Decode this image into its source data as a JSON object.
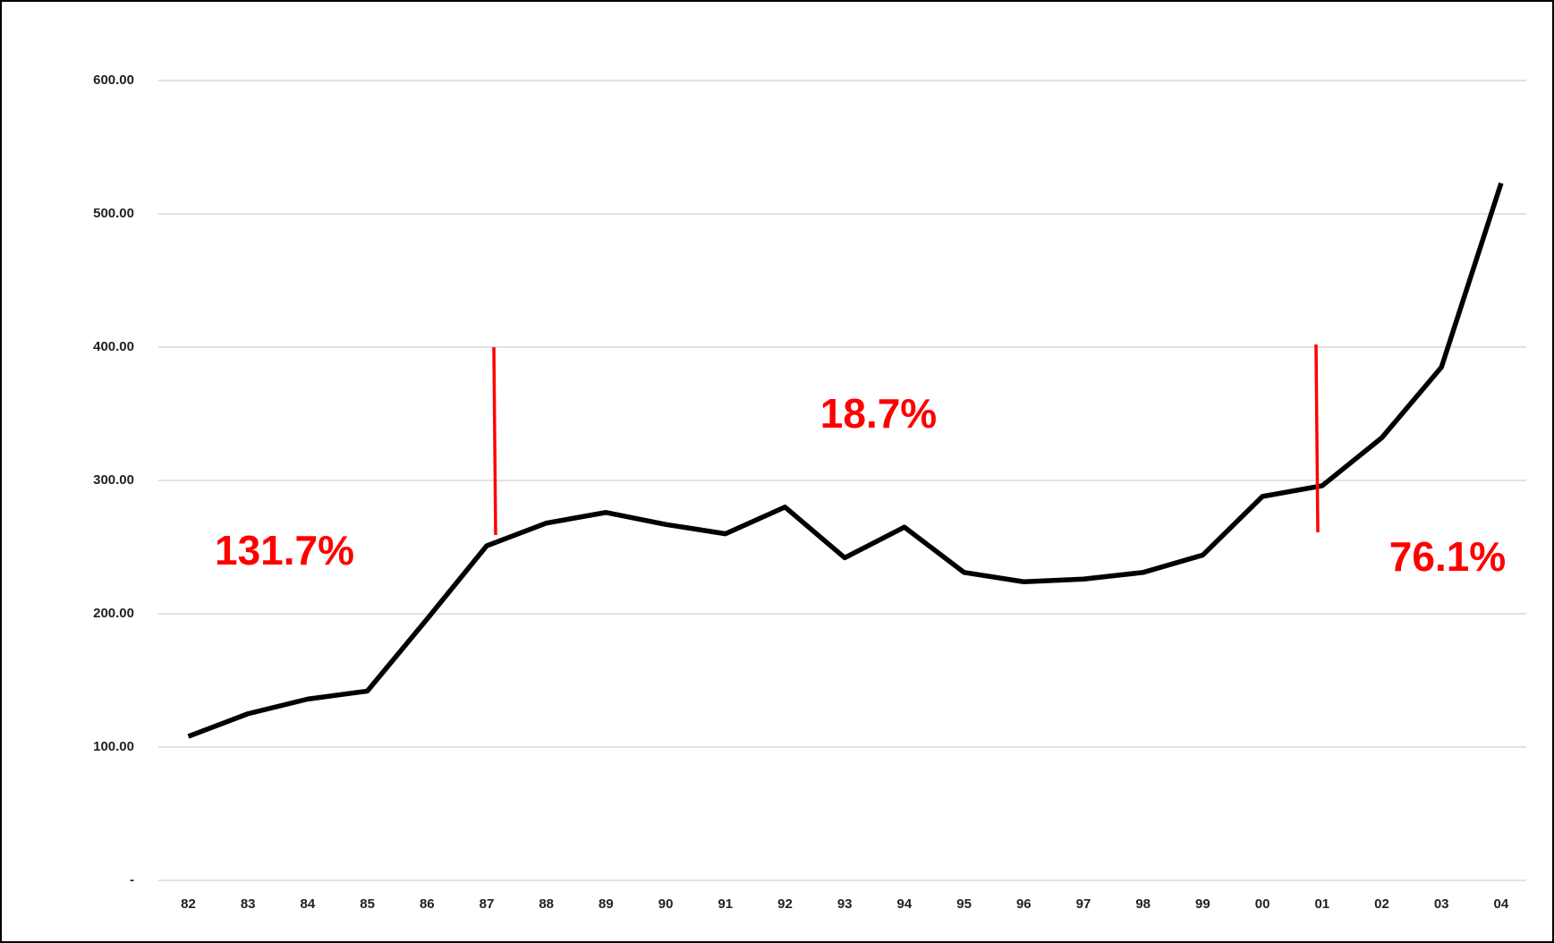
{
  "chart_data": {
    "type": "line",
    "categories": [
      "82",
      "83",
      "84",
      "85",
      "86",
      "87",
      "88",
      "89",
      "90",
      "91",
      "92",
      "93",
      "94",
      "95",
      "96",
      "97",
      "98",
      "99",
      "00",
      "01",
      "02",
      "03",
      "04"
    ],
    "series": [
      {
        "color": "#000000",
        "values": [
          108,
          125,
          136,
          142,
          196,
          251,
          268,
          276,
          267,
          260,
          280,
          242,
          265,
          231,
          224,
          226,
          231,
          244,
          288,
          296,
          332,
          385,
          523
        ]
      }
    ],
    "ylim": [
      0,
      600
    ],
    "yticks": [
      {
        "value": 0,
        "label": "-"
      },
      {
        "value": 100,
        "label": "100.00"
      },
      {
        "value": 200,
        "label": "200.00"
      },
      {
        "value": 300,
        "label": "300.00"
      },
      {
        "value": 400,
        "label": "400.00"
      },
      {
        "value": 500,
        "label": "500.00"
      },
      {
        "value": 600,
        "label": "600.00"
      }
    ],
    "grid": true,
    "annotations": [
      "131.7%",
      "18.7%",
      "76.1%"
    ],
    "annotation_color": "#ff0000"
  }
}
